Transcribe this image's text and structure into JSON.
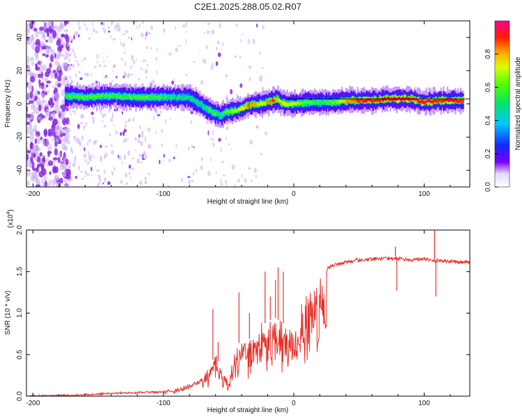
{
  "title": "C2E1.2025.288.05.02.R07",
  "colors": {
    "snr_line": "#e8302a",
    "axes": "#000000",
    "speck_purple": "#8a2be2",
    "speck_light": "#cdb4f0"
  },
  "chart_data": [
    {
      "type": "heatmap",
      "name": "spectrogram",
      "xlabel": "Height of straight line (km)",
      "ylabel": "Frequency (Hz)",
      "xlim": [
        -205,
        135
      ],
      "ylim": [
        -50,
        50
      ],
      "xticks": [
        -200,
        -100,
        0,
        100
      ],
      "yticks": [
        -40,
        -20,
        0,
        20,
        40
      ],
      "ytick_labels": [
        "-40",
        "-20",
        "0",
        "20",
        "40"
      ],
      "colorbar": {
        "label": "Normalized spectral amplitude",
        "range": [
          0.0,
          1.0
        ],
        "ticks": [
          0.0,
          0.2,
          0.4,
          0.6,
          0.8
        ],
        "tick_labels": [
          "0.0",
          "0.2",
          "0.4",
          "0.6",
          "0.8"
        ]
      },
      "ridge": {
        "description": "frequency of peak spectral amplitude vs height",
        "x": [
          -175,
          -160,
          -140,
          -120,
          -100,
          -90,
          -80,
          -70,
          -62,
          -56,
          -52,
          -45,
          -40,
          -35,
          -30,
          -25,
          -20,
          -15,
          -12,
          -10,
          -5,
          0,
          10,
          20,
          30,
          40,
          50,
          60,
          70,
          80,
          90,
          100,
          110,
          120,
          130
        ],
        "y": [
          5,
          4,
          5,
          4,
          4,
          4,
          4,
          -1,
          -5,
          -7,
          -5,
          -4,
          -3,
          -1,
          0,
          0,
          1,
          2,
          3,
          1,
          0,
          0,
          1,
          1,
          1,
          2,
          2,
          2,
          3,
          3,
          3,
          1,
          2,
          2,
          2
        ],
        "peak_amplitude": [
          0.55,
          0.6,
          0.55,
          0.6,
          0.55,
          0.5,
          0.5,
          0.5,
          0.6,
          0.5,
          0.6,
          0.7,
          0.7,
          0.85,
          0.8,
          0.7,
          0.8,
          0.9,
          0.7,
          0.75,
          0.7,
          0.7,
          0.6,
          0.55,
          0.6,
          0.8,
          0.9,
          0.95,
          0.9,
          0.95,
          0.9,
          0.95,
          0.9,
          0.95,
          0.9
        ]
      }
    },
    {
      "type": "line",
      "name": "snr",
      "xlabel": "Height of straight line (km)",
      "ylabel": "SNR (10 * v/v)",
      "multiplier_label": "(x10",
      "multiplier_exp": "4",
      "xlim": [
        -205,
        135
      ],
      "ylim": [
        0,
        2.0
      ],
      "xticks": [
        -200,
        -100,
        0,
        100
      ],
      "yticks": [
        0.0,
        0.5,
        1.0,
        1.5,
        2.0
      ],
      "ytick_labels": [
        "0.0",
        "0.5",
        "1.0",
        "1.5",
        "2.0"
      ],
      "envelope": {
        "x": [
          -205,
          -170,
          -130,
          -100,
          -90,
          -80,
          -70,
          -65,
          -60,
          -55,
          -50,
          -45,
          -40,
          -35,
          -30,
          -25,
          -20,
          -15,
          -10,
          -5,
          0,
          5,
          10,
          20,
          30,
          40,
          50,
          60,
          70,
          80,
          90,
          100,
          105,
          110,
          120,
          135
        ],
        "y": [
          0.01,
          0.02,
          0.05,
          0.06,
          0.09,
          0.14,
          0.22,
          0.35,
          0.5,
          0.3,
          0.2,
          0.55,
          0.7,
          0.65,
          0.85,
          0.85,
          0.9,
          0.95,
          0.9,
          0.85,
          0.8,
          1.0,
          1.25,
          1.48,
          1.6,
          1.63,
          1.66,
          1.67,
          1.68,
          1.68,
          1.66,
          1.67,
          1.65,
          1.65,
          1.64,
          1.63
        ]
      },
      "spikes": {
        "x": [
          -62,
          -58,
          -42,
          -34,
          -22,
          -18,
          -14,
          -12,
          -8,
          78,
          79,
          108,
          109
        ],
        "y": [
          1.05,
          0.65,
          1.25,
          1.0,
          1.5,
          1.2,
          1.4,
          1.55,
          1.5,
          1.8,
          1.27,
          2.0,
          1.2
        ]
      }
    }
  ]
}
